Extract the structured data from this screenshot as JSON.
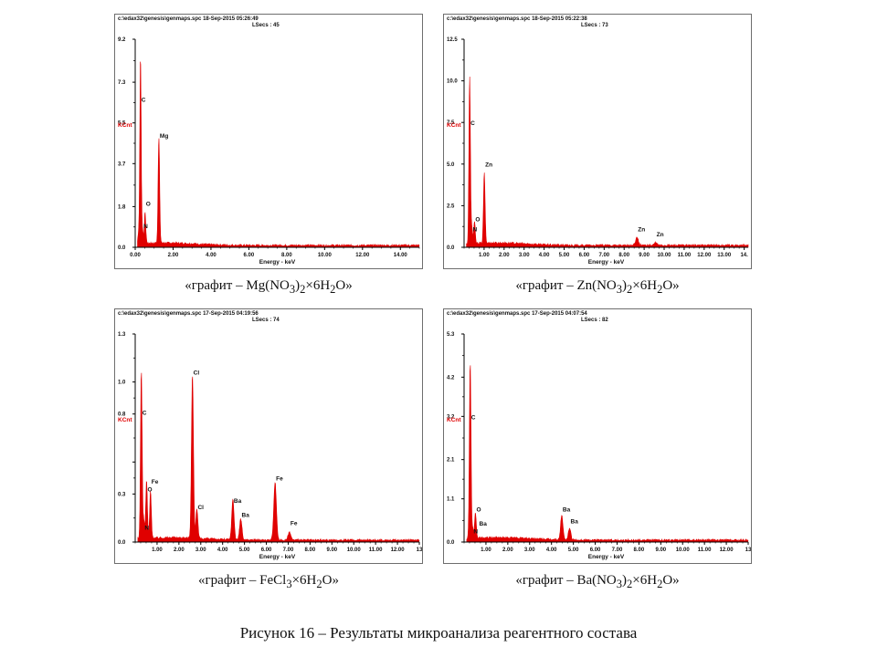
{
  "figure_caption": "Рисунок 16 – Результаты микроанализа реагентного состава",
  "style": {
    "spectrum_color": "#e00000",
    "axis_color": "#000000",
    "kcnt_color": "#e00000"
  },
  "panels": [
    {
      "path": "c:\\edax32\\genesis\\genmaps.spc",
      "timestamp": "18-Sep-2015 05:26:49",
      "lsecs": "LSecs : 45",
      "caption_pre": "«графит – Mg(NO",
      "caption_sub1": "3",
      "caption_mid": ")",
      "caption_sub2": "2",
      "caption_mid2": "×6H",
      "caption_sub3": "2",
      "caption_post": "O»"
    },
    {
      "path": "c:\\edax32\\genesis\\genmaps.spc",
      "timestamp": "18-Sep-2015 05:22:38",
      "lsecs": "LSecs : 73",
      "caption_pre": "«графит – Zn(NO",
      "caption_sub1": "3",
      "caption_mid": ")",
      "caption_sub2": "2",
      "caption_mid2": "×6H",
      "caption_sub3": "2",
      "caption_post": "O»"
    },
    {
      "path": "c:\\edax32\\genesis\\genmaps.spc",
      "timestamp": "17-Sep-2015 04:19:56",
      "lsecs": "LSecs : 74",
      "caption_pre": "«графит – FeCl",
      "caption_sub1": "3",
      "caption_mid": "",
      "caption_sub2": "",
      "caption_mid2": "×6H",
      "caption_sub3": "2",
      "caption_post": "O»"
    },
    {
      "path": "c:\\edax32\\genesis\\genmaps.spc",
      "timestamp": "17-Sep-2015 04:07:54",
      "lsecs": "LSecs : 82",
      "caption_pre": "«графит – Ba(NO",
      "caption_sub1": "3",
      "caption_mid": ")",
      "caption_sub2": "2",
      "caption_mid2": "×6H",
      "caption_sub3": "2",
      "caption_post": "O»"
    }
  ],
  "chart_data": [
    {
      "type": "area",
      "xlabel": "Energy - keV",
      "ylabel": "KCnt",
      "xlim": [
        0,
        15
      ],
      "ylim": [
        0,
        9.2
      ],
      "xticks": [
        0,
        2,
        4,
        6,
        8,
        10,
        12,
        14
      ],
      "xtick_labels": [
        "0.00",
        "2.00",
        "4.00",
        "6.00",
        "8.00",
        "10.00",
        "12.00",
        "14.00"
      ],
      "yticks": [
        0,
        1.8,
        3.7,
        5.5,
        7.3,
        9.2
      ],
      "ytick_labels": [
        "0.0",
        "1.8",
        "3.7",
        "5.5",
        "7.3",
        "9.2"
      ],
      "peaks": [
        {
          "x": 0.18,
          "y": 0.5
        },
        {
          "x": 0.28,
          "y": 8.3
        },
        {
          "x": 0.39,
          "y": 0.6
        },
        {
          "x": 0.52,
          "y": 1.4
        },
        {
          "x": 1.25,
          "y": 4.7
        }
      ],
      "annotations": [
        {
          "label": "C",
          "x": 0.28,
          "y": 6.4
        },
        {
          "label": "Mg",
          "x": 1.25,
          "y": 4.8
        },
        {
          "label": "O",
          "x": 0.52,
          "y": 1.8
        },
        {
          "label": "N",
          "x": 0.39,
          "y": 0.8
        }
      ]
    },
    {
      "type": "area",
      "xlabel": "Energy - keV",
      "ylabel": "KCnt",
      "xlim": [
        0,
        14.2
      ],
      "ylim": [
        0,
        12.5
      ],
      "xticks": [
        1,
        2,
        3,
        4,
        5,
        6,
        7,
        8,
        9,
        10,
        11,
        12,
        13,
        14
      ],
      "xtick_labels": [
        "1.00",
        "2.00",
        "3.00",
        "4.00",
        "5.00",
        "6.00",
        "7.00",
        "8.00",
        "9.00",
        "10.00",
        "11.00",
        "12.00",
        "13.00",
        "14."
      ],
      "yticks": [
        0,
        2.5,
        5.0,
        7.5,
        10.0,
        12.5
      ],
      "ytick_labels": [
        "0.0",
        "2.5",
        "5.0",
        "7.5",
        "10.0",
        "12.5"
      ],
      "peaks": [
        {
          "x": 0.28,
          "y": 10.0
        },
        {
          "x": 0.39,
          "y": 1.0
        },
        {
          "x": 0.52,
          "y": 1.3
        },
        {
          "x": 1.01,
          "y": 4.2
        },
        {
          "x": 8.64,
          "y": 0.5
        },
        {
          "x": 9.57,
          "y": 0.15
        }
      ],
      "annotations": [
        {
          "label": "C",
          "x": 0.28,
          "y": 7.3
        },
        {
          "label": "Zn",
          "x": 1.01,
          "y": 4.8
        },
        {
          "label": "O",
          "x": 0.52,
          "y": 1.5
        },
        {
          "label": "N",
          "x": 0.39,
          "y": 0.9
        },
        {
          "label": "Zn",
          "x": 8.64,
          "y": 0.9
        },
        {
          "label": "Zn",
          "x": 9.57,
          "y": 0.6
        }
      ]
    },
    {
      "type": "area",
      "xlabel": "Energy - keV",
      "ylabel": "KCnt",
      "xlim": [
        0,
        13
      ],
      "ylim": [
        0,
        1.3
      ],
      "xticks": [
        1,
        2,
        3,
        4,
        5,
        6,
        7,
        8,
        9,
        10,
        11,
        12,
        13
      ],
      "xtick_labels": [
        "1.00",
        "2.00",
        "3.00",
        "4.00",
        "5.00",
        "6.00",
        "7.00",
        "8.00",
        "9.00",
        "10.00",
        "11.00",
        "12.00",
        "13"
      ],
      "yticks": [
        0,
        0.3,
        0.5,
        0.8,
        1.0,
        1.3
      ],
      "ytick_labels": [
        "0.0",
        "0.3",
        "",
        "0.8",
        "1.0",
        "1.3"
      ],
      "peaks": [
        {
          "x": 0.28,
          "y": 1.05
        },
        {
          "x": 0.39,
          "y": 0.12
        },
        {
          "x": 0.52,
          "y": 0.36
        },
        {
          "x": 0.7,
          "y": 0.29
        },
        {
          "x": 2.62,
          "y": 1.02
        },
        {
          "x": 2.82,
          "y": 0.18
        },
        {
          "x": 4.47,
          "y": 0.25
        },
        {
          "x": 4.83,
          "y": 0.13
        },
        {
          "x": 6.4,
          "y": 0.36
        },
        {
          "x": 7.06,
          "y": 0.05
        }
      ],
      "annotations": [
        {
          "label": "C",
          "x": 0.28,
          "y": 0.79
        },
        {
          "label": "Cl",
          "x": 2.62,
          "y": 1.04
        },
        {
          "label": "Fe",
          "x": 0.7,
          "y": 0.36
        },
        {
          "label": "O",
          "x": 0.52,
          "y": 0.31
        },
        {
          "label": "N",
          "x": 0.39,
          "y": 0.07
        },
        {
          "label": "Cl",
          "x": 2.82,
          "y": 0.2
        },
        {
          "label": "Ba",
          "x": 4.47,
          "y": 0.24
        },
        {
          "label": "Ba",
          "x": 4.83,
          "y": 0.15
        },
        {
          "label": "Fe",
          "x": 6.4,
          "y": 0.38
        },
        {
          "label": "Fe",
          "x": 7.06,
          "y": 0.1
        }
      ]
    },
    {
      "type": "area",
      "xlabel": "Energy - keV",
      "ylabel": "KCnt",
      "xlim": [
        0,
        13
      ],
      "ylim": [
        0,
        5.3
      ],
      "xticks": [
        1,
        2,
        3,
        4,
        5,
        6,
        7,
        8,
        9,
        10,
        11,
        12,
        13
      ],
      "xtick_labels": [
        "1.00",
        "2.00",
        "3.00",
        "4.00",
        "5.00",
        "6.00",
        "7.00",
        "8.00",
        "9.00",
        "10.00",
        "11.00",
        "12.00",
        "13"
      ],
      "yticks": [
        0,
        1.1,
        2.1,
        3.2,
        4.2,
        5.3
      ],
      "ytick_labels": [
        "0.0",
        "1.1",
        "2.1",
        "3.2",
        "4.2",
        "5.3"
      ],
      "peaks": [
        {
          "x": 0.28,
          "y": 4.5
        },
        {
          "x": 0.39,
          "y": 0.25
        },
        {
          "x": 0.52,
          "y": 0.65
        },
        {
          "x": 4.47,
          "y": 0.62
        },
        {
          "x": 4.83,
          "y": 0.3
        }
      ],
      "annotations": [
        {
          "label": "C",
          "x": 0.28,
          "y": 3.1
        },
        {
          "label": "O",
          "x": 0.52,
          "y": 0.75
        },
        {
          "label": "N",
          "x": 0.39,
          "y": 0.2
        },
        {
          "label": "Ba",
          "x": 0.65,
          "y": 0.4
        },
        {
          "label": "Ba",
          "x": 4.47,
          "y": 0.75
        },
        {
          "label": "Ba",
          "x": 4.83,
          "y": 0.45
        }
      ]
    }
  ]
}
